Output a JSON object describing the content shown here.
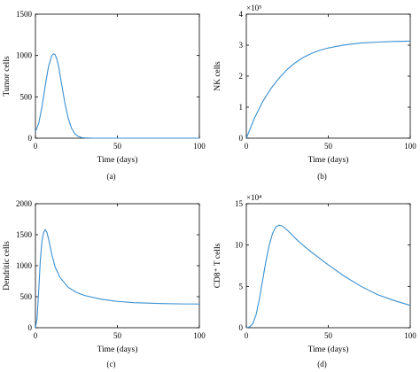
{
  "chart_data": [
    {
      "type": "line",
      "panel_label": "(a)",
      "xlabel": "Time (days)",
      "ylabel": "Tumor cells",
      "xlim": [
        0,
        100
      ],
      "ylim": [
        0,
        1500
      ],
      "xticks": [
        0,
        50,
        100
      ],
      "yticks": [
        0,
        500,
        1000,
        1500
      ],
      "ytick_labels": [
        "0",
        "500",
        "1000",
        "1500"
      ],
      "y_multiplier_label": "",
      "color": "#3a8fd0",
      "grid": false,
      "x": [
        0,
        2,
        4,
        6,
        8,
        10,
        11,
        12,
        13,
        14,
        16,
        18,
        20,
        22,
        24,
        26,
        28,
        30,
        35,
        40,
        50,
        60,
        80,
        100
      ],
      "y": [
        80,
        180,
        380,
        640,
        870,
        1000,
        1020,
        1010,
        960,
        880,
        650,
        420,
        240,
        120,
        55,
        22,
        8,
        3,
        0,
        0,
        0,
        0,
        0,
        0
      ]
    },
    {
      "type": "line",
      "panel_label": "(b)",
      "xlabel": "Time (days)",
      "ylabel": "NK cells",
      "xlim": [
        0,
        100
      ],
      "ylim": [
        0,
        4
      ],
      "xticks": [
        0,
        50,
        100
      ],
      "yticks": [
        0,
        1,
        2,
        3,
        4
      ],
      "ytick_labels": [
        "0",
        "1",
        "2",
        "3",
        "4"
      ],
      "y_multiplier_label": "×10⁵",
      "color": "#3a8fd0",
      "grid": false,
      "x": [
        0,
        5,
        10,
        15,
        20,
        25,
        30,
        35,
        40,
        45,
        50,
        60,
        70,
        80,
        90,
        100
      ],
      "y": [
        0,
        0.65,
        1.18,
        1.6,
        1.94,
        2.22,
        2.44,
        2.61,
        2.74,
        2.84,
        2.91,
        3.01,
        3.07,
        3.1,
        3.12,
        3.13
      ]
    },
    {
      "type": "line",
      "panel_label": "(c)",
      "xlabel": "Time (days)",
      "ylabel": "Dendritic cells",
      "xlim": [
        0,
        100
      ],
      "ylim": [
        0,
        2000
      ],
      "xticks": [
        0,
        50,
        100
      ],
      "yticks": [
        0,
        500,
        1000,
        1500,
        2000
      ],
      "ytick_labels": [
        "0",
        "500",
        "1000",
        "1500",
        "2000"
      ],
      "y_multiplier_label": "",
      "color": "#3a8fd0",
      "grid": false,
      "x": [
        0,
        1,
        2,
        3,
        4,
        5,
        6,
        7,
        8,
        10,
        12,
        15,
        20,
        25,
        30,
        40,
        50,
        60,
        70,
        80,
        90,
        100
      ],
      "y": [
        0,
        150,
        600,
        1100,
        1400,
        1540,
        1580,
        1540,
        1430,
        1180,
        980,
        810,
        650,
        570,
        520,
        460,
        425,
        405,
        395,
        388,
        384,
        382
      ]
    },
    {
      "type": "line",
      "panel_label": "(d)",
      "xlabel": "Time (days)",
      "ylabel": "CD8⁺ T cells",
      "xlim": [
        0,
        100
      ],
      "ylim": [
        0,
        15
      ],
      "xticks": [
        0,
        50,
        100
      ],
      "yticks": [
        0,
        5,
        10,
        15
      ],
      "ytick_labels": [
        "0",
        "5",
        "10",
        "15"
      ],
      "y_multiplier_label": "×10⁴",
      "color": "#3a8fd0",
      "grid": false,
      "x": [
        0,
        2,
        4,
        6,
        8,
        10,
        12,
        14,
        16,
        18,
        20,
        22,
        25,
        30,
        35,
        40,
        50,
        60,
        70,
        80,
        90,
        100
      ],
      "y": [
        0,
        0.1,
        0.5,
        1.6,
        3.5,
        5.8,
        8.1,
        10.0,
        11.4,
        12.2,
        12.4,
        12.3,
        11.8,
        10.8,
        9.9,
        9.1,
        7.6,
        6.2,
        5.0,
        4.0,
        3.3,
        2.7
      ]
    }
  ]
}
